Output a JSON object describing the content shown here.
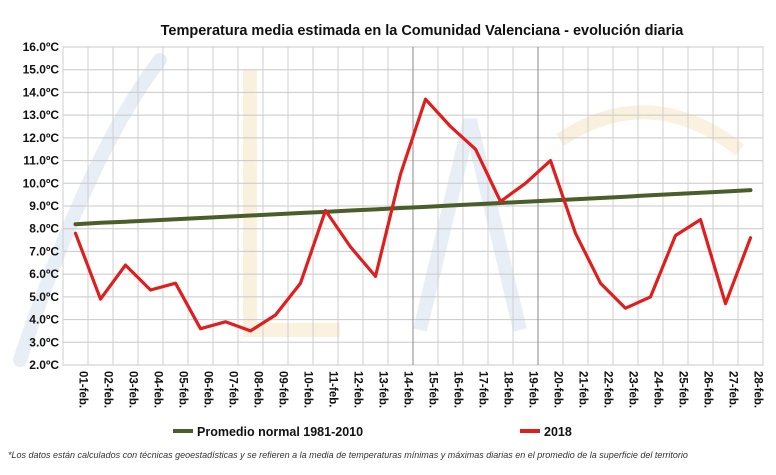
{
  "chart_data": {
    "type": "line",
    "title": "Temperatura media estimada en la Comunidad Valenciana - evolución diaria",
    "categories": [
      "01-feb.",
      "02-feb.",
      "03-feb.",
      "04-feb.",
      "05-feb.",
      "06-feb.",
      "07-feb.",
      "08-feb.",
      "09-feb.",
      "10-feb.",
      "11-feb.",
      "12-feb.",
      "13-feb.",
      "14-feb.",
      "15-feb.",
      "16-feb.",
      "17-feb.",
      "18-feb.",
      "19-feb.",
      "20-feb.",
      "21-feb.",
      "22-feb.",
      "23-feb.",
      "24-feb.",
      "25-feb.",
      "26-feb.",
      "27-feb.",
      "28-feb."
    ],
    "ylim": [
      2.0,
      16.0
    ],
    "ytick_step": 1.0,
    "ytick_labels": [
      "2.0ºC",
      "3.0ºC",
      "4.0ºC",
      "5.0ºC",
      "6.0ºC",
      "7.0ºC",
      "8.0ºC",
      "9.0ºC",
      "10.0ºC",
      "11.0ºC",
      "12.0ºC",
      "13.0ºC",
      "14.0ºC",
      "15.0ºC",
      "16.0ºC"
    ],
    "grid": true,
    "legend_position": "bottom",
    "series": [
      {
        "name": "Promedio normal 1981-2010",
        "color": "#4a5e2a",
        "values": [
          8.2,
          8.26,
          8.31,
          8.36,
          8.42,
          8.47,
          8.53,
          8.58,
          8.64,
          8.69,
          8.74,
          8.8,
          8.85,
          8.91,
          8.96,
          9.02,
          9.08,
          9.13,
          9.19,
          9.24,
          9.3,
          9.35,
          9.41,
          9.47,
          9.53,
          9.58,
          9.64,
          9.7
        ]
      },
      {
        "name": "2018",
        "color": "#e01e1e",
        "values": [
          7.8,
          4.9,
          6.4,
          5.3,
          5.6,
          3.6,
          3.9,
          3.5,
          4.2,
          5.6,
          8.8,
          7.2,
          5.9,
          10.4,
          13.7,
          12.5,
          11.5,
          9.2,
          10.0,
          11.0,
          7.8,
          5.6,
          4.5,
          5.0,
          7.7,
          8.4,
          4.7,
          7.6
        ]
      }
    ],
    "footnote": "*Los datos están calculados con técnicas geoestadísticas y se refieren a la media de temperaturas mínimas y máximas diarias en el promedio de la superficie del territorio"
  }
}
